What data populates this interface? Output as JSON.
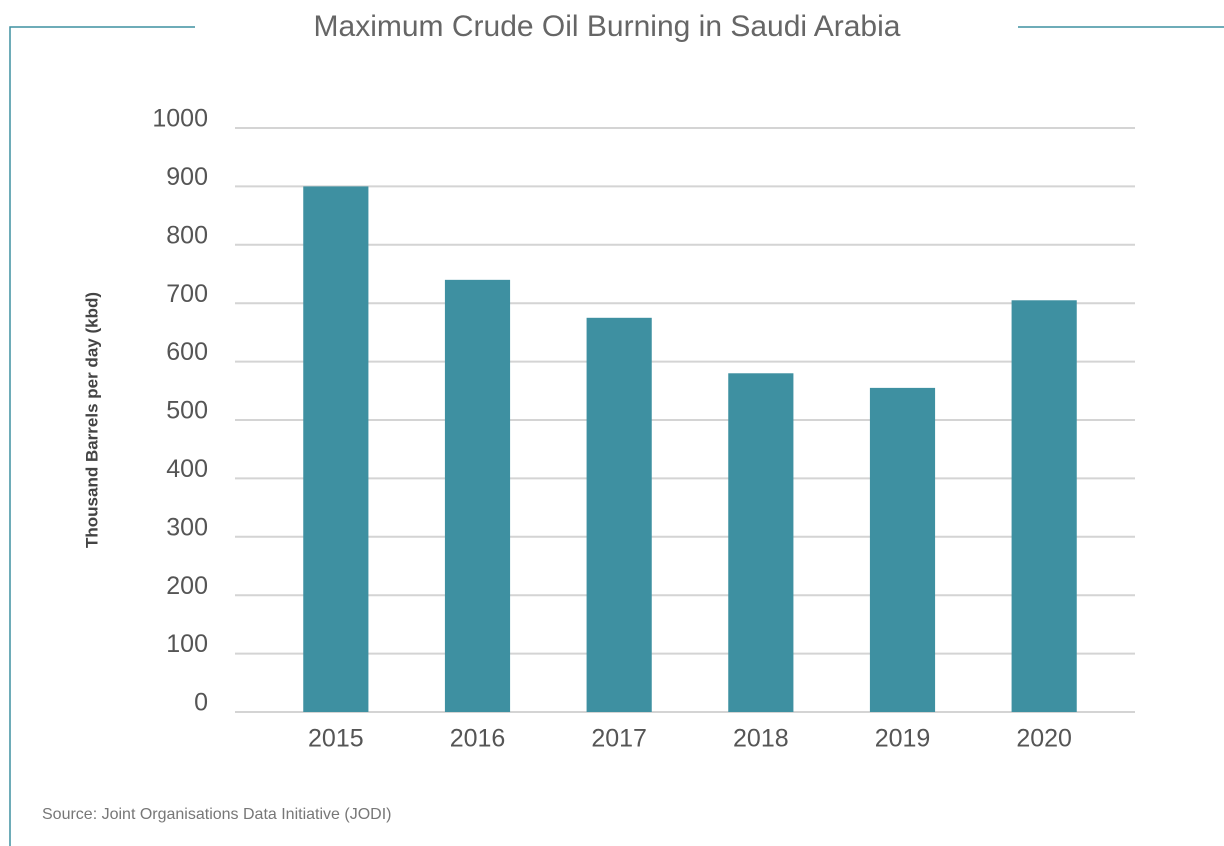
{
  "chart_data": {
    "type": "bar",
    "title": "Maximum Crude Oil Burning in Saudi Arabia",
    "y_label": "Thousand Barrels per day (kbd)",
    "source": "Source: Joint Organisations Data Initiative (JODI)",
    "categories": [
      "2015",
      "2016",
      "2017",
      "2018",
      "2019",
      "2020"
    ],
    "values": [
      900,
      740,
      675,
      580,
      555,
      705
    ],
    "color": "#3e90a1",
    "ylim": [
      0,
      1000
    ],
    "yticks": [
      0,
      100,
      200,
      300,
      400,
      500,
      600,
      700,
      800,
      900,
      1000
    ],
    "grid": true
  }
}
